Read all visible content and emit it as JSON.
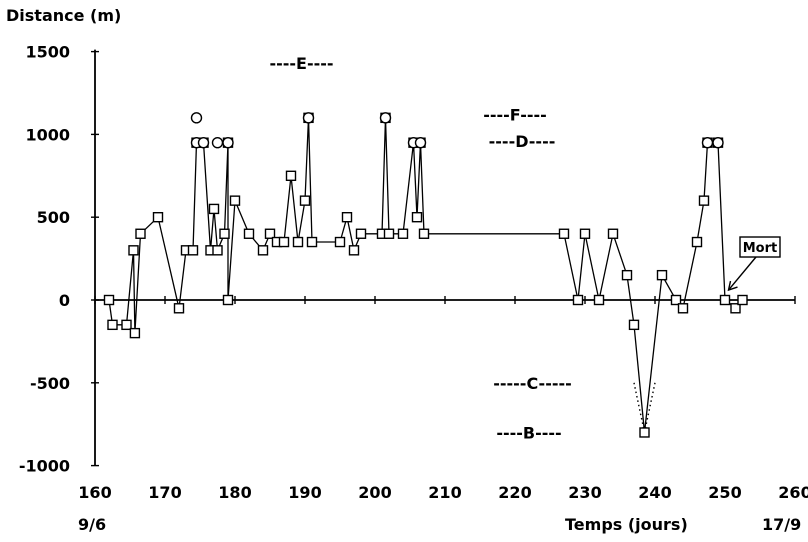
{
  "chart_data": {
    "type": "line",
    "title": "",
    "xlabel": "Temps (jours)",
    "ylabel": "Distance (m)",
    "xlim": [
      160,
      260
    ],
    "ylim": [
      -1000,
      1500
    ],
    "x_ticks": [
      160,
      170,
      180,
      190,
      200,
      210,
      220,
      230,
      240,
      250,
      260
    ],
    "y_ticks": [
      -1000,
      -500,
      0,
      500,
      1000,
      1500
    ],
    "date_labels": {
      "start": "9/6",
      "end": "17/9"
    },
    "grid": false,
    "series": [
      {
        "marker": "square",
        "points": [
          [
            162,
            0
          ],
          [
            162.5,
            -150
          ],
          [
            164.5,
            -150
          ],
          [
            165.5,
            300
          ],
          [
            165.7,
            -200
          ],
          [
            166.5,
            400
          ],
          [
            169,
            500
          ],
          [
            172,
            -50
          ],
          [
            173,
            300
          ],
          [
            174,
            300
          ],
          [
            174.5,
            950
          ],
          [
            175.5,
            950
          ],
          [
            176.5,
            300
          ],
          [
            177,
            550
          ],
          [
            177.5,
            300
          ],
          [
            178.5,
            400
          ],
          [
            179,
            950
          ],
          [
            179,
            0
          ],
          [
            180,
            600
          ],
          [
            182,
            400
          ],
          [
            184,
            300
          ],
          [
            185,
            400
          ],
          [
            186,
            350
          ],
          [
            187,
            350
          ],
          [
            188,
            750
          ],
          [
            189,
            350
          ],
          [
            190,
            600
          ],
          [
            190.5,
            1100
          ],
          [
            191,
            350
          ],
          [
            195,
            350
          ],
          [
            196,
            500
          ],
          [
            197,
            300
          ],
          [
            198,
            400
          ],
          [
            201,
            400
          ],
          [
            201.5,
            1100
          ],
          [
            202,
            400
          ],
          [
            204,
            400
          ],
          [
            205.5,
            950
          ],
          [
            206,
            500
          ],
          [
            206.5,
            950
          ],
          [
            207,
            400
          ],
          [
            227,
            400
          ],
          [
            229,
            0
          ],
          [
            230,
            400
          ],
          [
            232,
            0
          ],
          [
            234,
            400
          ],
          [
            236,
            150
          ],
          [
            237,
            -150
          ],
          [
            238.5,
            -800
          ],
          [
            241,
            150
          ],
          [
            243,
            0
          ],
          [
            244,
            -50
          ],
          [
            246,
            350
          ],
          [
            247,
            600
          ],
          [
            247.5,
            950
          ],
          [
            249,
            950
          ],
          [
            250,
            0
          ],
          [
            251.5,
            -50
          ],
          [
            252.5,
            0
          ]
        ]
      }
    ],
    "circle_markers": [
      [
        174.5,
        1100
      ],
      [
        174.5,
        950
      ],
      [
        175.5,
        950
      ],
      [
        177.5,
        950
      ],
      [
        179,
        950
      ],
      [
        190.5,
        1100
      ],
      [
        201.5,
        1100
      ],
      [
        205.5,
        950
      ],
      [
        206.5,
        950
      ],
      [
        247.5,
        950
      ],
      [
        249,
        950
      ]
    ],
    "dotted_segments": [
      [
        [
          237,
          -500
        ],
        [
          238.5,
          -800
        ]
      ],
      [
        [
          240,
          -500
        ],
        [
          238.5,
          -800
        ]
      ]
    ],
    "bands": [
      {
        "label": "E",
        "text": "----E----",
        "x_start": 178,
        "x_end": 201,
        "y": 1430
      },
      {
        "label": "F",
        "text": "----F----",
        "x_start": 210,
        "x_end": 230,
        "y": 1120
      },
      {
        "label": "D",
        "text": "----D----",
        "x_start": 211,
        "x_end": 231,
        "y": 960
      },
      {
        "label": "C",
        "text": "-----C-----",
        "x_start": 211,
        "x_end": 234,
        "y": -500
      },
      {
        "label": "B",
        "text": "----B----",
        "x_start": 212,
        "x_end": 232,
        "y": -800
      }
    ],
    "annotation": {
      "text": "Mort",
      "target": [
        250.5,
        60
      ],
      "box_at": [
        255,
        320
      ]
    }
  }
}
